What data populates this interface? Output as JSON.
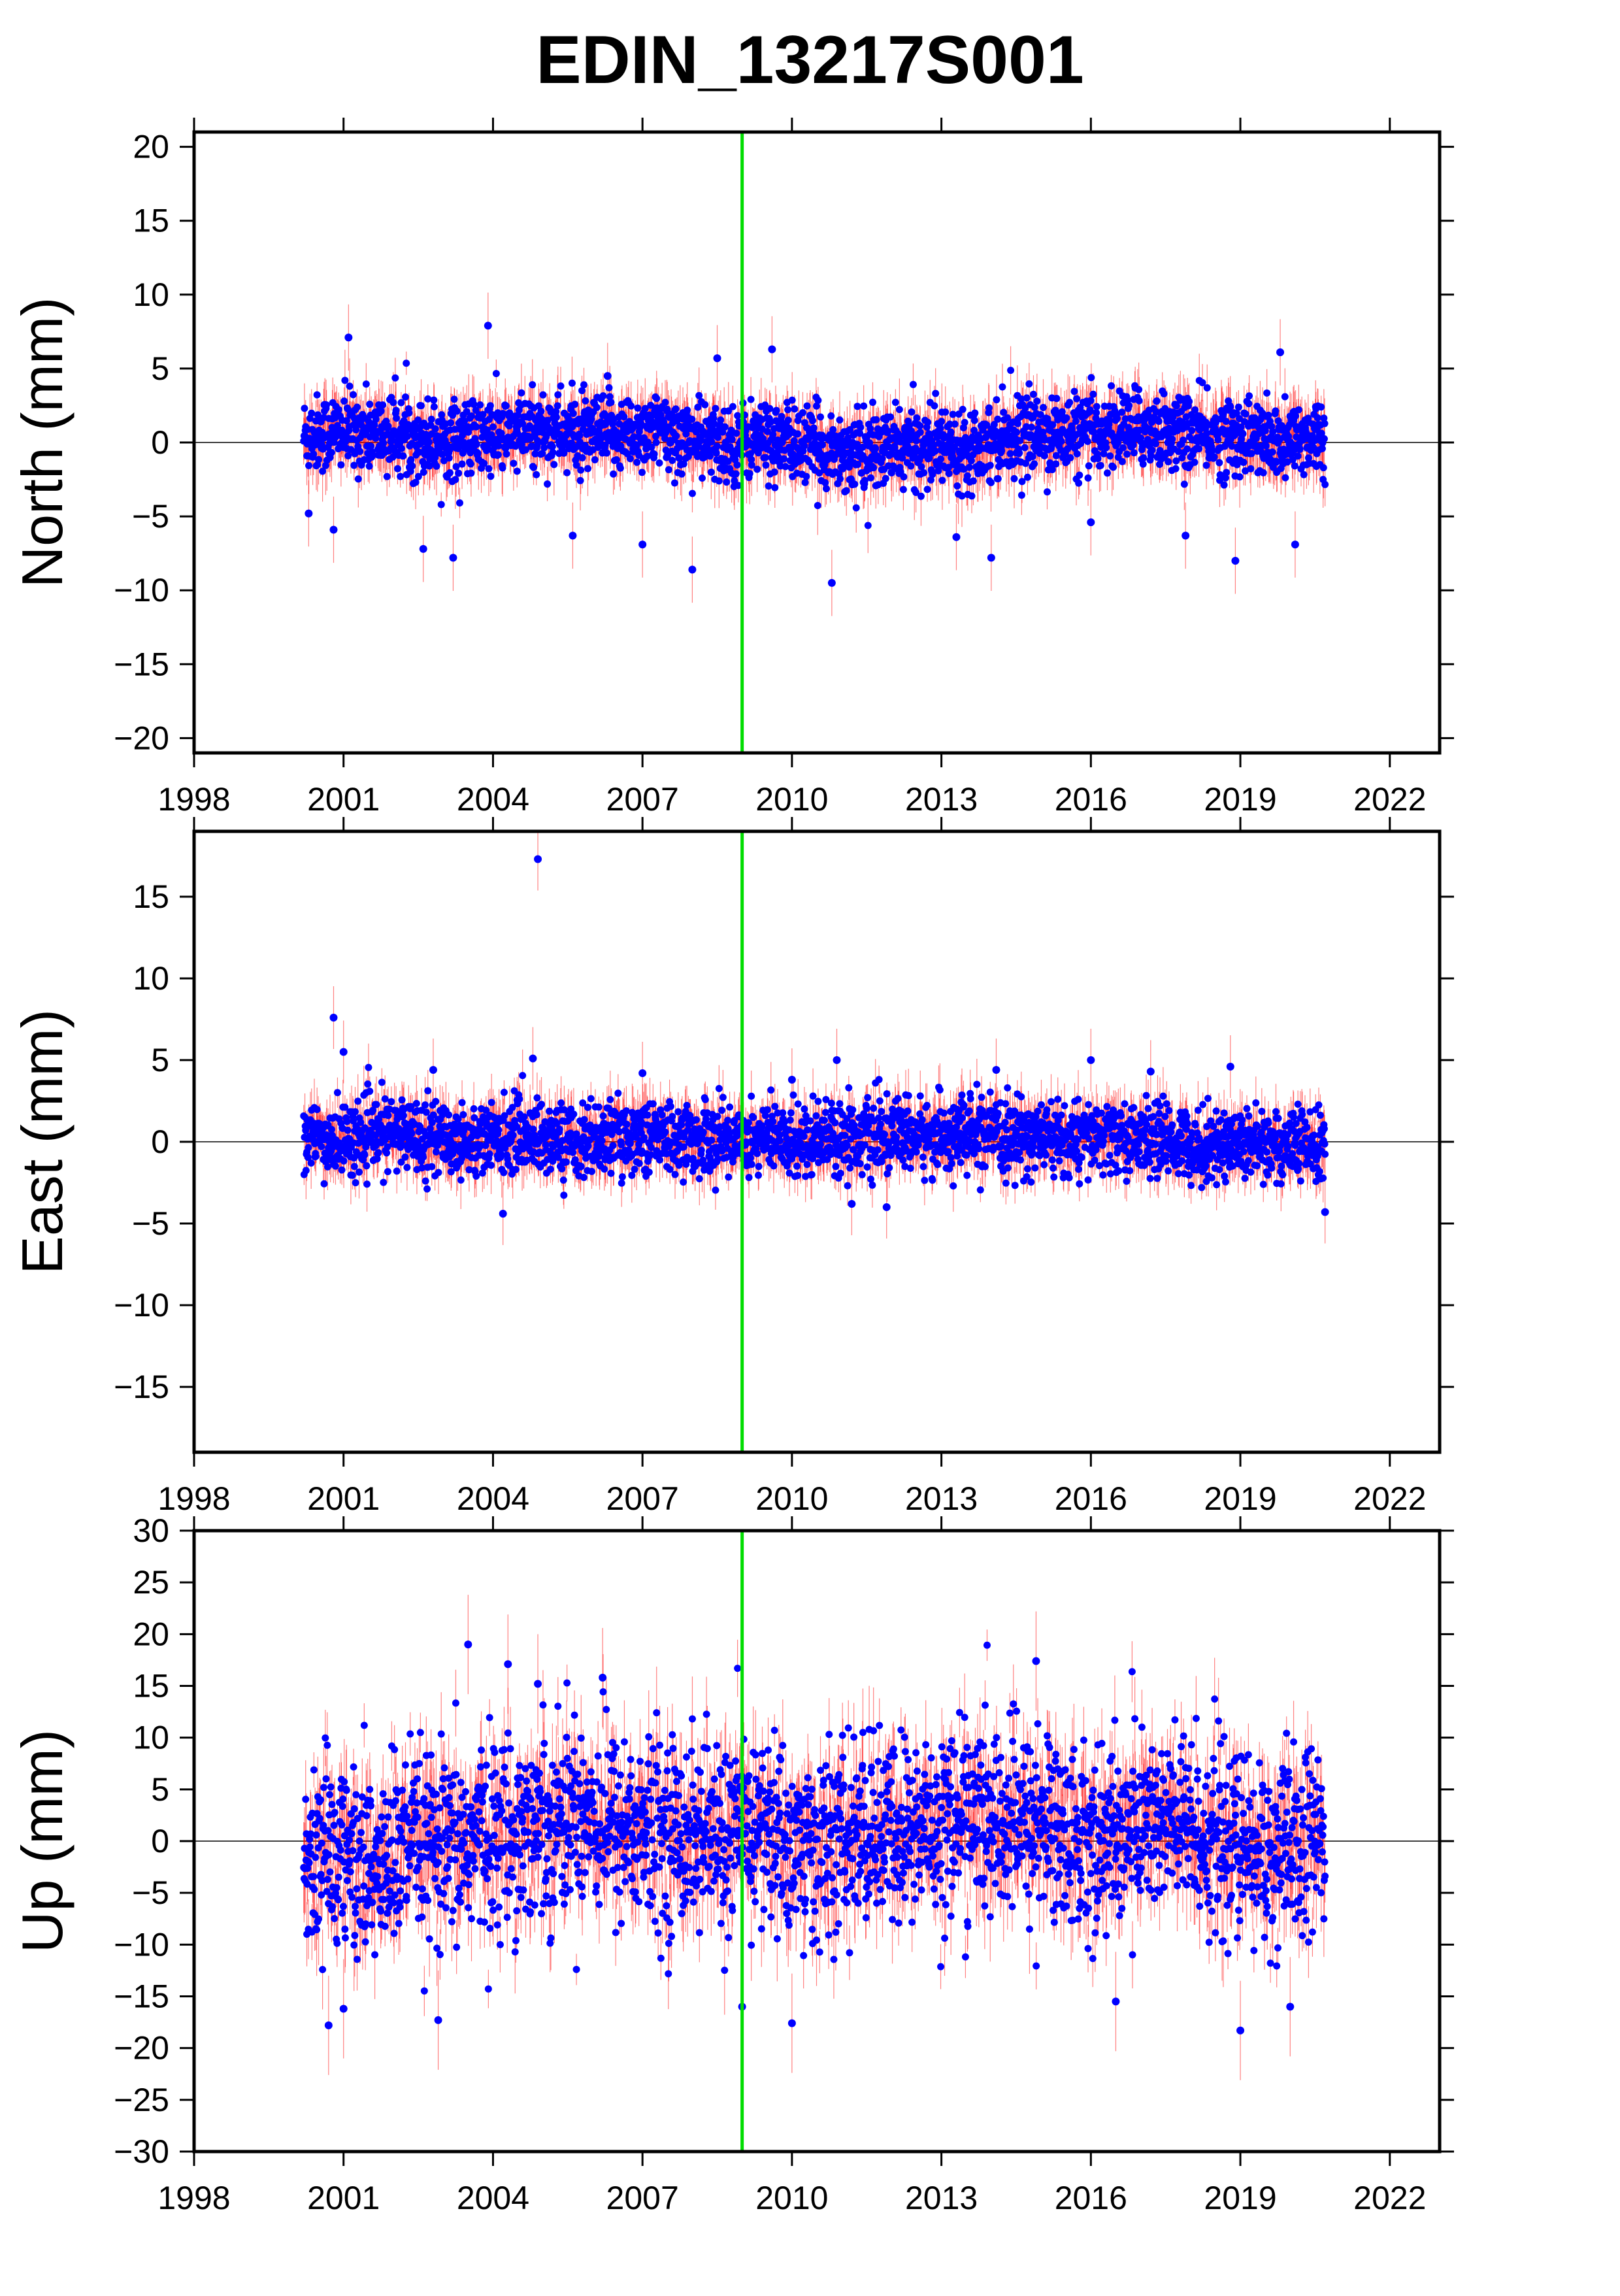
{
  "title": "EDIN_13217S001",
  "chart_data": [
    {
      "type": "scatter",
      "ylabel": "North (mm)",
      "xlim": [
        1998,
        2023
      ],
      "ylim": [
        -21,
        21
      ],
      "xticks": [
        1998,
        2001,
        2004,
        2007,
        2010,
        2013,
        2016,
        2019,
        2022
      ],
      "xtick_labels": [
        "1998",
        "2001",
        "2004",
        "2007",
        "2010",
        "2013",
        "2016",
        "2019",
        "2022"
      ],
      "yticks": [
        -20,
        -15,
        -10,
        -5,
        0,
        5,
        10,
        15,
        20
      ],
      "ytick_labels": [
        "−20",
        "−15",
        "−10",
        "−5",
        "0",
        "5",
        "10",
        "15",
        "20"
      ],
      "series": [
        {
          "x": [
            2000.3,
            2000.9,
            2001.6,
            2002.3,
            2003.0,
            2003.7,
            2004.4,
            2005.1,
            2005.8,
            2006.5,
            2007.2,
            2007.9,
            2008.6,
            2009.3,
            2010.0,
            2010.7,
            2011.4,
            2012.1,
            2012.8,
            2013.5,
            2014.2,
            2014.9,
            2015.6,
            2016.3,
            2017.0,
            2017.7,
            2018.4,
            2019.1,
            2019.8,
            2020.5
          ],
          "values": [
            0.5,
            0.8,
            0.6,
            0.4,
            0.2,
            0.3,
            0.5,
            0.9,
            0.4,
            0.6,
            0.8,
            0.3,
            -0.2,
            0.2,
            0.0,
            -0.5,
            -0.8,
            -0.4,
            -0.2,
            -0.3,
            0.4,
            0.6,
            0.5,
            0.8,
            1.0,
            0.7,
            0.4,
            0.5,
            -0.3,
            0.6
          ],
          "scatter_sd": 1.3,
          "error_bar_mean": 1.4,
          "outliers": [
            [
              2000.3,
              -4.8
            ],
            [
              2000.8,
              -5.9
            ],
            [
              2001.1,
              7.1
            ],
            [
              2002.6,
              -7.2
            ],
            [
              2003.2,
              -7.8
            ],
            [
              2003.9,
              7.9
            ],
            [
              2005.6,
              -6.3
            ],
            [
              2006.3,
              4.5
            ],
            [
              2007.0,
              -6.9
            ],
            [
              2008.0,
              -8.6
            ],
            [
              2008.5,
              5.7
            ],
            [
              2009.6,
              6.3
            ],
            [
              2010.8,
              -9.5
            ],
            [
              2013.3,
              -6.4
            ],
            [
              2014.0,
              -7.8
            ],
            [
              2016.0,
              -5.4
            ],
            [
              2017.9,
              -6.3
            ],
            [
              2018.9,
              -8.0
            ],
            [
              2019.8,
              6.1
            ],
            [
              2020.1,
              -6.9
            ]
          ],
          "marker_color": "#0000ff",
          "error_color": "#ff0000"
        }
      ]
    },
    {
      "type": "scatter",
      "ylabel": "East (mm)",
      "xlim": [
        1998,
        2023
      ],
      "ylim": [
        -19,
        19
      ],
      "xticks": [
        1998,
        2001,
        2004,
        2007,
        2010,
        2013,
        2016,
        2019,
        2022
      ],
      "xtick_labels": [
        "1998",
        "2001",
        "2004",
        "2007",
        "2010",
        "2013",
        "2016",
        "2019",
        "2022"
      ],
      "yticks": [
        -15,
        -10,
        -5,
        0,
        5,
        10,
        15
      ],
      "ytick_labels": [
        "−15",
        "−10",
        "−5",
        "0",
        "5",
        "10",
        "15"
      ],
      "series": [
        {
          "x": [
            2000.3,
            2000.9,
            2001.6,
            2002.3,
            2003.0,
            2003.7,
            2004.4,
            2005.1,
            2005.8,
            2006.5,
            2007.2,
            2007.9,
            2008.6,
            2009.3,
            2010.0,
            2010.7,
            2011.4,
            2012.1,
            2012.8,
            2013.5,
            2014.2,
            2014.9,
            2015.6,
            2016.3,
            2017.0,
            2017.7,
            2018.4,
            2019.1,
            2019.8,
            2020.5
          ],
          "values": [
            0.2,
            0.0,
            0.4,
            0.6,
            0.2,
            0.1,
            0.5,
            0.2,
            0.0,
            0.3,
            0.4,
            0.1,
            0.2,
            0.3,
            0.0,
            0.5,
            0.2,
            0.4,
            0.3,
            0.5,
            0.2,
            0.4,
            0.0,
            0.3,
            0.2,
            0.0,
            -0.3,
            0.1,
            -0.2,
            -0.4
          ],
          "scatter_sd": 1.1,
          "error_bar_mean": 1.2,
          "outliers": [
            [
              2000.8,
              7.6
            ],
            [
              2001.0,
              5.5
            ],
            [
              2002.8,
              4.4
            ],
            [
              2004.2,
              -4.4
            ],
            [
              2004.8,
              5.1
            ],
            [
              2004.9,
              17.3
            ],
            [
              2007.0,
              4.2
            ],
            [
              2010.0,
              3.8
            ],
            [
              2010.9,
              5.0
            ],
            [
              2011.2,
              -3.8
            ],
            [
              2011.9,
              -4.0
            ],
            [
              2014.1,
              4.4
            ],
            [
              2016.0,
              5.0
            ],
            [
              2017.2,
              4.3
            ],
            [
              2018.8,
              4.6
            ],
            [
              2020.7,
              -4.3
            ]
          ],
          "marker_color": "#0000ff",
          "error_color": "#ff0000"
        }
      ]
    },
    {
      "type": "scatter",
      "ylabel": "Up (mm)",
      "xlim": [
        1998,
        2023
      ],
      "ylim": [
        -30,
        30
      ],
      "xticks": [
        1998,
        2001,
        2004,
        2007,
        2010,
        2013,
        2016,
        2019,
        2022
      ],
      "xtick_labels": [
        "1998",
        "2001",
        "2004",
        "2007",
        "2010",
        "2013",
        "2016",
        "2019",
        "2022"
      ],
      "yticks": [
        -30,
        -25,
        -20,
        -15,
        -10,
        -5,
        0,
        5,
        10,
        15,
        20,
        25,
        30
      ],
      "ytick_labels": [
        "−30",
        "−25",
        "−20",
        "−15",
        "−10",
        "−5",
        "0",
        "5",
        "10",
        "15",
        "20",
        "25",
        "30"
      ],
      "series": [
        {
          "x": [
            2000.3,
            2000.9,
            2001.6,
            2002.3,
            2003.0,
            2003.7,
            2004.4,
            2005.1,
            2005.8,
            2006.5,
            2007.2,
            2007.9,
            2008.6,
            2009.3,
            2010.0,
            2010.7,
            2011.4,
            2012.1,
            2012.8,
            2013.5,
            2014.2,
            2014.9,
            2015.6,
            2016.3,
            2017.0,
            2017.7,
            2018.4,
            2019.1,
            2019.8,
            2020.5
          ],
          "values": [
            -2.0,
            -1.0,
            -3.0,
            -0.5,
            -1.5,
            0.5,
            1.0,
            2.0,
            3.0,
            1.5,
            0.5,
            1.0,
            0.0,
            1.5,
            -0.5,
            -1.0,
            1.0,
            0.5,
            1.5,
            2.5,
            1.5,
            2.0,
            0.5,
            0.0,
            2.0,
            1.5,
            0.5,
            -1.0,
            -1.5,
            0.0
          ],
          "scatter_sd": 4.5,
          "error_bar_mean": 3.0,
          "outliers": [
            [
              2000.7,
              -17.8
            ],
            [
              2001.0,
              -16.2
            ],
            [
              2002.9,
              -17.3
            ],
            [
              2003.5,
              19.0
            ],
            [
              2004.3,
              17.1
            ],
            [
              2004.9,
              15.2
            ],
            [
              2006.2,
              15.8
            ],
            [
              2009.0,
              -16.0
            ],
            [
              2010.0,
              -17.6
            ],
            [
              2014.9,
              17.4
            ],
            [
              2016.5,
              -15.5
            ],
            [
              2019.0,
              -18.3
            ],
            [
              2020.0,
              -16.0
            ]
          ],
          "marker_color": "#0000ff",
          "error_color": "#ff0000"
        }
      ]
    }
  ],
  "marker_line": {
    "x": 2009.0,
    "color": "#00dd00"
  },
  "zero_line_color": "#000000"
}
